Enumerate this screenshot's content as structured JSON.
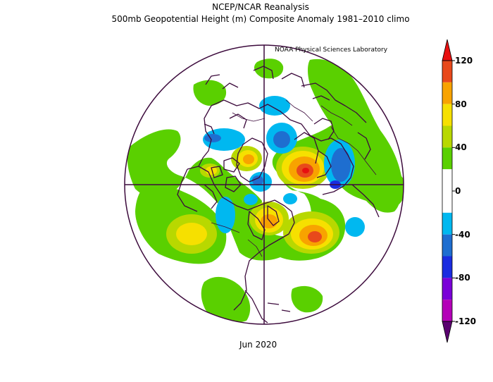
{
  "header": {
    "title_line1": "NCEP/NCAR Reanalysis",
    "title_line2": "500mb Geopotential Height (m) Composite Anomaly 1981–2010 climo",
    "credit": "NOAA Physical Sciences Laboratory"
  },
  "footer": {
    "date": "Jun 2020"
  },
  "colorbar": {
    "ticks": [
      "120",
      "80",
      "40",
      "0",
      "-40",
      "-80",
      "-120"
    ],
    "levels": [
      {
        "min": 100,
        "max": 120,
        "color": "#e8491b"
      },
      {
        "min": 80,
        "max": 100,
        "color": "#f8a300"
      },
      {
        "min": 60,
        "max": 80,
        "color": "#f6e000"
      },
      {
        "min": 40,
        "max": 60,
        "color": "#b8d800"
      },
      {
        "min": 20,
        "max": 40,
        "color": "#5ad000"
      },
      {
        "min": -20,
        "max": 20,
        "color": "#ffffff"
      },
      {
        "min": -40,
        "max": -20,
        "color": "#00b8f0"
      },
      {
        "min": -60,
        "max": -40,
        "color": "#1e6ed0"
      },
      {
        "min": -80,
        "max": -60,
        "color": "#1a2ce0"
      },
      {
        "min": -100,
        "max": -80,
        "color": "#7a00d8"
      },
      {
        "min": -120,
        "max": -100,
        "color": "#b400b8"
      }
    ],
    "over_color": "#e81010",
    "under_color": "#5a0070"
  },
  "map": {
    "projection": "north polar stereographic",
    "line_color": "#3c0a3c"
  }
}
